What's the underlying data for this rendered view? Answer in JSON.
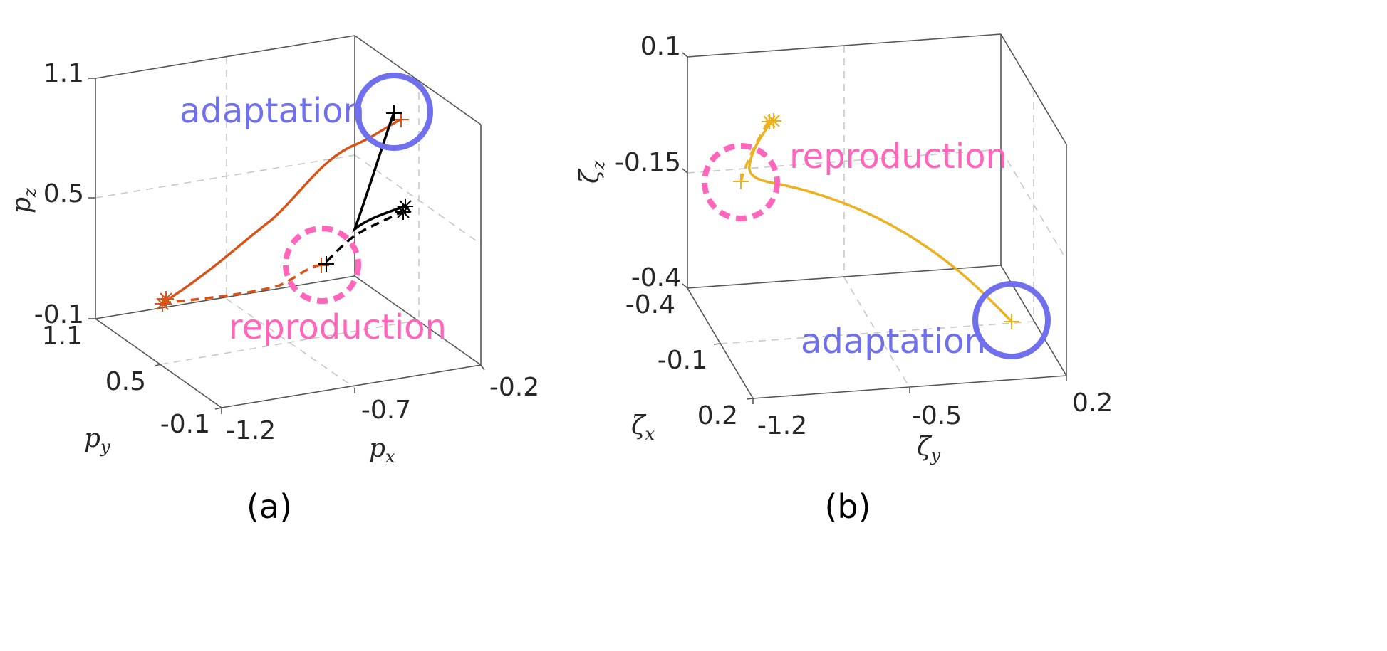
{
  "colors": {
    "orange": "#d95319",
    "gold": "#edb120",
    "black": "#000000",
    "adaptation": "#7070ee",
    "reproduction": "#ff66bb"
  },
  "chart_data": [
    {
      "type": "line3d",
      "panel_label": "(a)",
      "xlabel": "p",
      "xlabel_sub": "x",
      "ylabel": "p",
      "ylabel_sub": "y",
      "zlabel": "p",
      "zlabel_sub": "z",
      "xticks": [
        "-1.2",
        "-0.7",
        "-0.2"
      ],
      "yticks": [
        "-0.1",
        "0.5",
        "1.1"
      ],
      "zticks": [
        "-0.1",
        "0.5",
        "1.1"
      ],
      "xlim": [
        -1.2,
        -0.2
      ],
      "ylim": [
        -0.1,
        1.1
      ],
      "zlim": [
        -0.1,
        1.1
      ],
      "annotations": [
        {
          "text": "adaptation",
          "style": "solid-circle",
          "color": "#7070ee"
        },
        {
          "text": "reproduction",
          "style": "dashed-circle",
          "color": "#ff66bb"
        }
      ],
      "series": [
        {
          "style": "solid",
          "color": "#d95319",
          "start_marker": "asterisk",
          "end_marker": "plus"
        },
        {
          "style": "dashed",
          "color": "#d95319",
          "start_marker": "asterisk",
          "end_marker": "plus"
        },
        {
          "style": "solid",
          "color": "#000000",
          "start_marker": "asterisk",
          "end_marker": "plus"
        },
        {
          "style": "dashed",
          "color": "#000000",
          "start_marker": "asterisk",
          "end_marker": "plus"
        }
      ]
    },
    {
      "type": "line3d",
      "panel_label": "(b)",
      "xlabel": "ζ",
      "xlabel_sub": "x",
      "ylabel": "ζ",
      "ylabel_sub": "y",
      "zlabel": "ζ",
      "zlabel_sub": "z",
      "xticks": [
        "-0.4",
        "-0.1",
        "0.2"
      ],
      "yticks": [
        "-1.2",
        "-0.5",
        "0.2"
      ],
      "zticks": [
        "-0.4",
        "-0.15",
        "0.1"
      ],
      "xlim": [
        -0.4,
        0.2
      ],
      "ylim": [
        -1.2,
        0.2
      ],
      "zlim": [
        -0.4,
        0.1
      ],
      "annotations": [
        {
          "text": "reproduction",
          "style": "dashed-circle",
          "color": "#ff66bb"
        },
        {
          "text": "adaptation",
          "style": "solid-circle",
          "color": "#7070ee"
        }
      ],
      "series": [
        {
          "style": "solid",
          "color": "#edb120",
          "start_marker": "asterisk",
          "end_marker": "plus"
        },
        {
          "style": "dashed",
          "color": "#edb120",
          "start_marker": "asterisk",
          "end_marker": "plus"
        }
      ]
    }
  ]
}
